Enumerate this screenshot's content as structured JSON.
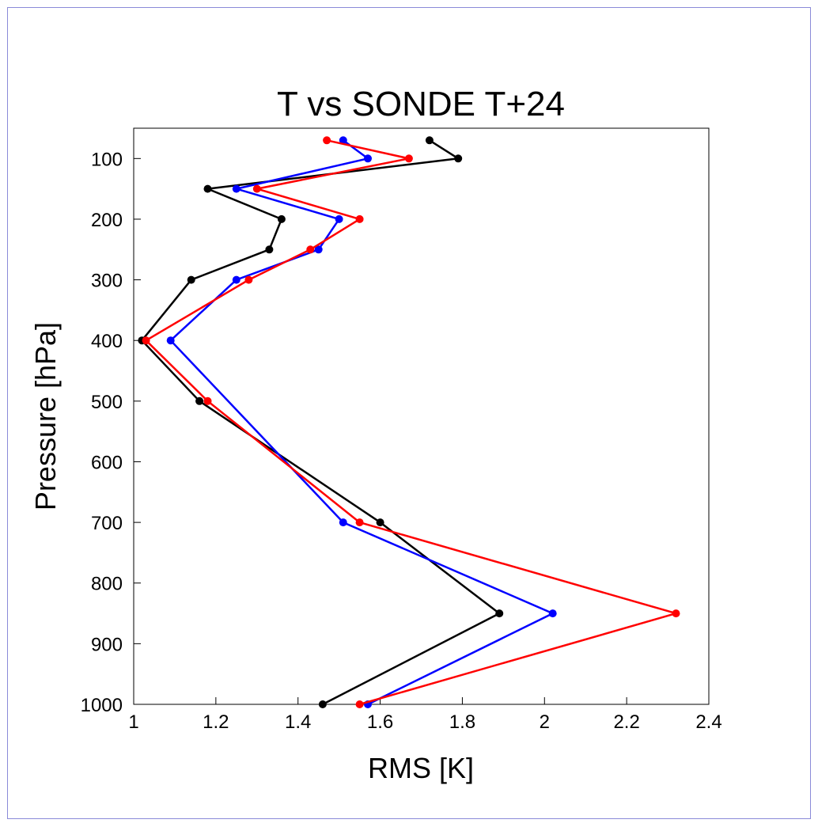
{
  "chart_data": {
    "type": "line",
    "title": "T vs SONDE T+24",
    "xlabel": "RMS [K]",
    "ylabel": "Pressure [hPa]",
    "xlim": [
      1,
      2.4
    ],
    "ylim": [
      1000,
      50
    ],
    "y_inverted": true,
    "grid": false,
    "legend": "none",
    "x_ticks": [
      "1",
      "1.2",
      "1.4",
      "1.6",
      "1.8",
      "2",
      "2.2",
      "2.4"
    ],
    "y_ticks": [
      "100",
      "200",
      "300",
      "400",
      "500",
      "600",
      "700",
      "800",
      "900",
      "1000"
    ],
    "pressure_levels": [
      70,
      100,
      150,
      200,
      250,
      300,
      400,
      500,
      700,
      850,
      1000
    ],
    "series": [
      {
        "color": "#000000",
        "values": [
          1.72,
          1.79,
          1.18,
          1.36,
          1.33,
          1.14,
          1.02,
          1.16,
          1.6,
          1.89,
          1.46
        ]
      },
      {
        "color": "#0000ff",
        "values": [
          1.51,
          1.57,
          1.25,
          1.5,
          1.45,
          1.25,
          1.09,
          null,
          1.51,
          2.02,
          1.57
        ]
      },
      {
        "color": "#ff0000",
        "values": [
          1.47,
          1.67,
          1.3,
          1.55,
          1.43,
          1.28,
          1.03,
          1.18,
          1.55,
          2.32,
          1.55
        ]
      }
    ]
  }
}
